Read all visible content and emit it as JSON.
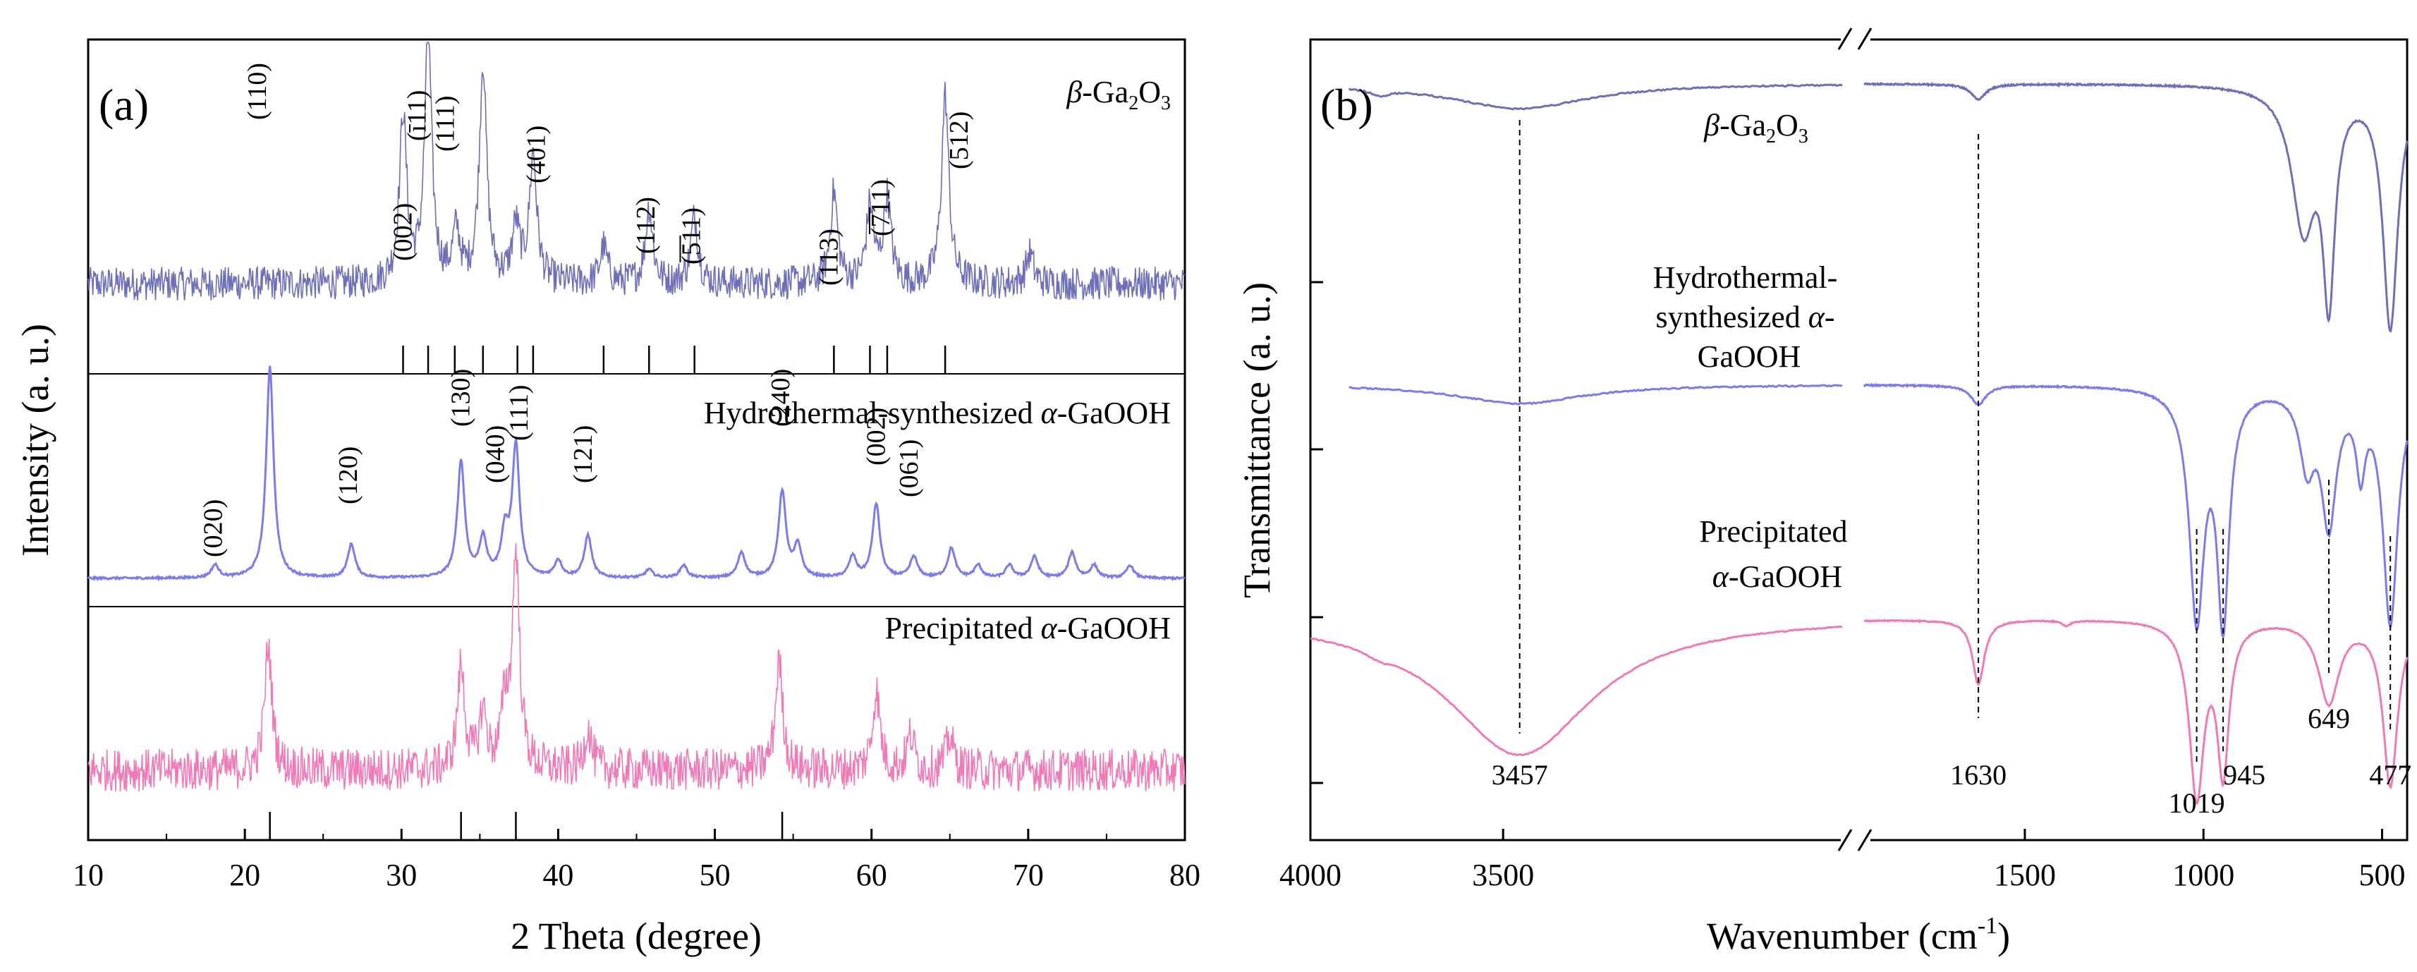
{
  "colors": {
    "beta": "#6f6fb8",
    "hydro": "#7b7bea",
    "precip": "#f07ab8",
    "axis": "#000000"
  },
  "chart_data": [
    {
      "type": "line",
      "panel_label": "(a)",
      "xlabel": "2 Theta (degree)",
      "ylabel": "Intensity (a. u.)",
      "xlim": [
        10,
        80
      ],
      "xticks": [
        "10",
        "20",
        "30",
        "40",
        "50",
        "60",
        "70",
        "80"
      ],
      "series": [
        {
          "key": "beta",
          "name": "β-Ga₂O₃",
          "name_main": "β",
          "name_rest": "-Ga",
          "name_sub1": "2",
          "name_o": "O",
          "name_sub2": "3",
          "baseline": 0.18,
          "peaks": [
            [
              30.1,
              0.55
            ],
            [
              31.7,
              0.8
            ],
            [
              33.5,
              0.16
            ],
            [
              35.2,
              0.72
            ],
            [
              37.3,
              0.18
            ],
            [
              38.4,
              0.42
            ],
            [
              42.9,
              0.12
            ],
            [
              45.8,
              0.25
            ],
            [
              48.7,
              0.22
            ],
            [
              57.6,
              0.3
            ],
            [
              59.9,
              0.25
            ],
            [
              61.0,
              0.28
            ],
            [
              64.7,
              0.62
            ],
            [
              70.1,
              0.1
            ]
          ],
          "ticks": [
            30.1,
            31.7,
            33.4,
            35.2,
            37.4,
            38.4,
            42.9,
            45.8,
            48.7,
            57.6,
            59.9,
            61.0,
            64.7
          ]
        },
        {
          "key": "hydro",
          "name": "Hydrothermal-synthesized α-GaOOH",
          "name_pre": "Hydrothermal-synthesized ",
          "name_alpha": "α",
          "name_post": "-GaOOH",
          "baseline": 0.0,
          "peaks": [
            [
              18.1,
              0.06
            ],
            [
              21.6,
              1.0
            ],
            [
              26.8,
              0.16
            ],
            [
              33.8,
              0.55
            ],
            [
              35.2,
              0.18
            ],
            [
              36.6,
              0.2
            ],
            [
              37.3,
              0.62
            ],
            [
              40.0,
              0.08
            ],
            [
              41.9,
              0.2
            ],
            [
              45.8,
              0.04
            ],
            [
              48.0,
              0.06
            ],
            [
              51.7,
              0.12
            ],
            [
              54.3,
              0.41
            ],
            [
              55.3,
              0.15
            ],
            [
              58.8,
              0.1
            ],
            [
              60.3,
              0.35
            ],
            [
              62.7,
              0.1
            ],
            [
              65.1,
              0.14
            ],
            [
              66.8,
              0.06
            ],
            [
              68.8,
              0.06
            ],
            [
              70.4,
              0.1
            ],
            [
              72.8,
              0.12
            ],
            [
              74.2,
              0.06
            ],
            [
              76.5,
              0.06
            ]
          ],
          "ticks": []
        },
        {
          "key": "precip",
          "name": "Precipitated α-GaOOH",
          "name_pre": "Precipitated ",
          "name_alpha": "α",
          "name_post": "-GaOOH",
          "baseline": 0.15,
          "peaks": [
            [
              21.5,
              0.55
            ],
            [
              33.8,
              0.45
            ],
            [
              35.2,
              0.25
            ],
            [
              36.6,
              0.25
            ],
            [
              37.3,
              0.95
            ],
            [
              41.9,
              0.18
            ],
            [
              54.1,
              0.48
            ],
            [
              60.3,
              0.35
            ],
            [
              62.5,
              0.15
            ],
            [
              65.0,
              0.15
            ]
          ],
          "ticks": [
            21.6,
            33.8,
            37.3,
            54.3
          ]
        }
      ],
      "annotations": [
        {
          "x": 30.1,
          "label": "(002)"
        },
        {
          "x": 31.0,
          "label": "(ī11)"
        },
        {
          "x": 32.8,
          "label": "(111)"
        },
        {
          "x": 38.6,
          "label": "(401)"
        },
        {
          "x": 45.6,
          "label": "(112)"
        },
        {
          "x": 48.5,
          "label": "(̅5̅11)"
        },
        {
          "x": 57.3,
          "label": "(113)"
        },
        {
          "x": 60.6,
          "label": "(̅7̅11)"
        },
        {
          "x": 65.6,
          "label": "(512)"
        },
        {
          "x": 18.0,
          "label": "(020)"
        },
        {
          "x": 20.8,
          "label": "(110)"
        },
        {
          "x": 26.6,
          "label": "(120)"
        },
        {
          "x": 33.8,
          "label": "(130)"
        },
        {
          "x": 36.0,
          "label": "(040)"
        },
        {
          "x": 37.5,
          "label": "(111)"
        },
        {
          "x": 41.6,
          "label": "(121)"
        },
        {
          "x": 54.2,
          "label": "(240)"
        },
        {
          "x": 60.3,
          "label": "(002)"
        },
        {
          "x": 62.4,
          "label": "(061)"
        }
      ]
    },
    {
      "type": "line",
      "panel_label": "(b)",
      "xlabel": "Wavenumber (cm",
      "xlabel_sup": "-1",
      "xlabel_end": ")",
      "ylabel": "Transmittance (a. u.)",
      "xlim_left": [
        4000,
        2600
      ],
      "xlim_right": [
        1950,
        430
      ],
      "xticks": [
        "4000",
        "3500",
        "1500",
        "1000",
        "500"
      ],
      "series": [
        {
          "key": "beta",
          "name": "β-Ga₂O₃",
          "name_main": "β",
          "name_rest": "-Ga",
          "name_sub1": "2",
          "name_o": "O",
          "name_sub2": "3",
          "bands": [
            [
              3457,
              0.1,
              220
            ],
            [
              3820,
              0.025,
              30
            ],
            [
              1630,
              0.06,
              25
            ],
            [
              720,
              0.55,
              40
            ],
            [
              649,
              0.78,
              20
            ],
            [
              477,
              0.95,
              25
            ]
          ]
        },
        {
          "key": "hydro",
          "name_line1": "Hydrothermal-",
          "name_line2a": "synthesized ",
          "name_alpha": "α",
          "name_line2b": "-",
          "name_line3": "GaOOH",
          "bands": [
            [
              3457,
              0.08,
              200
            ],
            [
              1630,
              0.08,
              25
            ],
            [
              1019,
              0.95,
              25
            ],
            [
              945,
              0.95,
              20
            ],
            [
              710,
              0.3,
              25
            ],
            [
              649,
              0.55,
              25
            ],
            [
              560,
              0.3,
              15
            ],
            [
              477,
              0.98,
              25
            ]
          ]
        },
        {
          "key": "precip",
          "name_line1": "Precipitated",
          "name_alpha": "α",
          "name_line2": "-GaOOH",
          "bands": [
            [
              3457,
              0.75,
              230
            ],
            [
              3820,
              0.03,
              40
            ],
            [
              1630,
              0.35,
              20
            ],
            [
              1384,
              0.03,
              15
            ],
            [
              1019,
              0.95,
              25
            ],
            [
              945,
              0.8,
              20
            ],
            [
              649,
              0.45,
              35
            ],
            [
              477,
              0.9,
              25
            ]
          ]
        }
      ],
      "guide_lines": [
        {
          "x": 3457,
          "label": "3457"
        },
        {
          "x": 1630,
          "label": "1630"
        },
        {
          "x": 1019,
          "label": "1019"
        },
        {
          "x": 945,
          "label": "945"
        },
        {
          "x": 649,
          "label": "649"
        },
        {
          "x": 477,
          "label": "477"
        }
      ]
    }
  ]
}
